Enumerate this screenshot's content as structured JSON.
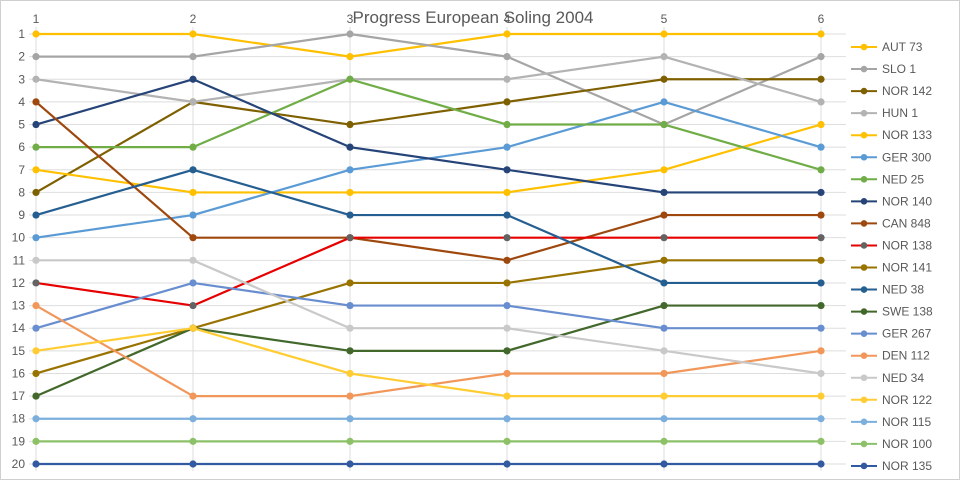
{
  "chart_data": {
    "type": "line",
    "title": "Progress European Soling 2004",
    "x_axis": {
      "label": "",
      "position": "top"
    },
    "x_labels": [
      "1",
      "2",
      "3",
      "4",
      "5",
      "6"
    ],
    "y_axis": {
      "label": "",
      "min": 1,
      "max": 20,
      "inverted": true,
      "meaning": "overall ranking position after each race"
    },
    "y_labels": [
      "1",
      "2",
      "3",
      "4",
      "5",
      "6",
      "7",
      "8",
      "9",
      "10",
      "11",
      "12",
      "13",
      "14",
      "15",
      "16",
      "17",
      "18",
      "19",
      "20"
    ],
    "grid": true,
    "legend_position": "right",
    "colors": {
      "grid": "#dedede",
      "axis_text": "#595959",
      "title_text": "#595959",
      "frame": "#cfcfcf"
    },
    "series": [
      {
        "name": "AUT 73",
        "color": "#FFC000",
        "marker": "#FFC000",
        "values": [
          1,
          1,
          2,
          1,
          1,
          1
        ]
      },
      {
        "name": "SLO 1",
        "color": "#A5A5A5",
        "marker": "#A5A5A5",
        "values": [
          2,
          2,
          1,
          2,
          5,
          2
        ]
      },
      {
        "name": "NOR 142",
        "color": "#7F6000",
        "marker": "#7F6000",
        "values": [
          8,
          4,
          5,
          4,
          3,
          3
        ]
      },
      {
        "name": "HUN 1",
        "color": "#B3B3B3",
        "marker": "#B3B3B3",
        "values": [
          3,
          4,
          3,
          3,
          2,
          4
        ]
      },
      {
        "name": "NOR 133",
        "color": "#FFC000",
        "marker": "#FFC000",
        "values": [
          7,
          8,
          8,
          8,
          7,
          5
        ]
      },
      {
        "name": "GER 300",
        "color": "#5B9BD5",
        "marker": "#5B9BD5",
        "values": [
          10,
          9,
          7,
          6,
          4,
          6
        ]
      },
      {
        "name": "NED 25",
        "color": "#70AD47",
        "marker": "#70AD47",
        "values": [
          6,
          6,
          3,
          5,
          5,
          7
        ]
      },
      {
        "name": "NOR 140",
        "color": "#264478",
        "marker": "#264478",
        "values": [
          5,
          3,
          6,
          7,
          8,
          8
        ]
      },
      {
        "name": "CAN 848",
        "color": "#9E480E",
        "marker": "#9E480E",
        "values": [
          4,
          10,
          10,
          11,
          9,
          9
        ]
      },
      {
        "name": "NOR 138",
        "color": "#E60000",
        "marker": "#636363",
        "values": [
          12,
          13,
          10,
          10,
          10,
          10
        ]
      },
      {
        "name": "NOR 141",
        "color": "#997300",
        "marker": "#997300",
        "values": [
          16,
          14,
          12,
          12,
          11,
          11
        ]
      },
      {
        "name": "NED 38",
        "color": "#255E91",
        "marker": "#255E91",
        "values": [
          9,
          7,
          9,
          9,
          12,
          12
        ]
      },
      {
        "name": "SWE 138",
        "color": "#43682B",
        "marker": "#43682B",
        "values": [
          17,
          14,
          15,
          15,
          13,
          13
        ]
      },
      {
        "name": "GER 267",
        "color": "#698ED0",
        "marker": "#698ED0",
        "values": [
          14,
          12,
          13,
          13,
          14,
          14
        ]
      },
      {
        "name": "DEN 112",
        "color": "#F1975A",
        "marker": "#F1975A",
        "values": [
          13,
          17,
          17,
          16,
          16,
          15
        ]
      },
      {
        "name": "NED 34",
        "color": "#C9C9C9",
        "marker": "#C9C9C9",
        "values": [
          11,
          11,
          14,
          14,
          15,
          16
        ]
      },
      {
        "name": "NOR 122",
        "color": "#FFCD33",
        "marker": "#FFCD33",
        "values": [
          15,
          14,
          16,
          17,
          17,
          17
        ]
      },
      {
        "name": "NOR 115",
        "color": "#7CAFDD",
        "marker": "#7CAFDD",
        "values": [
          18,
          18,
          18,
          18,
          18,
          18
        ]
      },
      {
        "name": "NOR 100",
        "color": "#8CC168",
        "marker": "#8CC168",
        "values": [
          19,
          19,
          19,
          19,
          19,
          19
        ]
      },
      {
        "name": "NOR 135",
        "color": "#335AA1",
        "marker": "#335AA1",
        "values": [
          20,
          20,
          20,
          20,
          20,
          20
        ]
      }
    ]
  }
}
